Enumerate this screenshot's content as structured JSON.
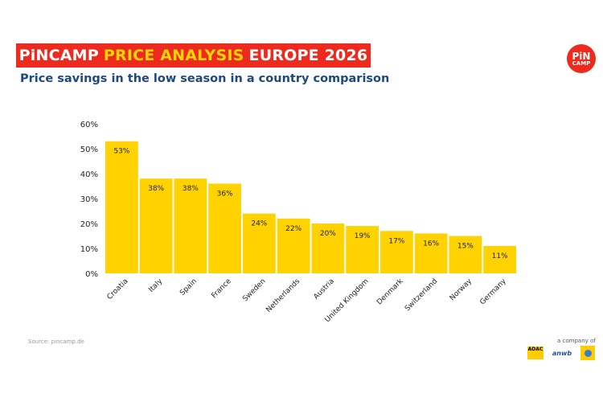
{
  "header": {
    "title_parts": [
      "PiNCAMP",
      "PRICE ANALYSIS",
      "EUROPE 2026"
    ],
    "subtitle": "Price savings in the low season in a country comparison"
  },
  "logo": {
    "line1": "PiN",
    "line2": "CAMP"
  },
  "footer": {
    "source": "Source: pincamp.de",
    "company_text": "a company of",
    "partners": [
      "ADAC",
      "anwb",
      "Touring"
    ]
  },
  "colors": {
    "bar": "#ffd200",
    "banner": "#ee2a1e",
    "accent_text": "#ffd600",
    "subtitle": "#1c4a7e"
  },
  "chart_data": {
    "type": "bar",
    "title": "Price savings in the low season in a country comparison",
    "xlabel": "",
    "ylabel": "",
    "categories": [
      "Croatia",
      "Italy",
      "Spain",
      "France",
      "Sweden",
      "Netherlands",
      "Austria",
      "United Kingdom",
      "Denmark",
      "Switzerland",
      "Norway",
      "Germany"
    ],
    "values": [
      53,
      38,
      38,
      36,
      24,
      22,
      20,
      19,
      17,
      16,
      15,
      11
    ],
    "data_labels": [
      "53%",
      "38%",
      "38%",
      "36%",
      "24%",
      "22%",
      "20%",
      "19%",
      "17%",
      "16%",
      "15%",
      "11%"
    ],
    "ylim": [
      0,
      60
    ],
    "yticks": [
      0,
      10,
      20,
      30,
      40,
      50,
      60
    ],
    "ytick_labels": [
      "0%",
      "10%",
      "20%",
      "30%",
      "40%",
      "50%",
      "60%"
    ],
    "grid": false,
    "legend": "none"
  }
}
